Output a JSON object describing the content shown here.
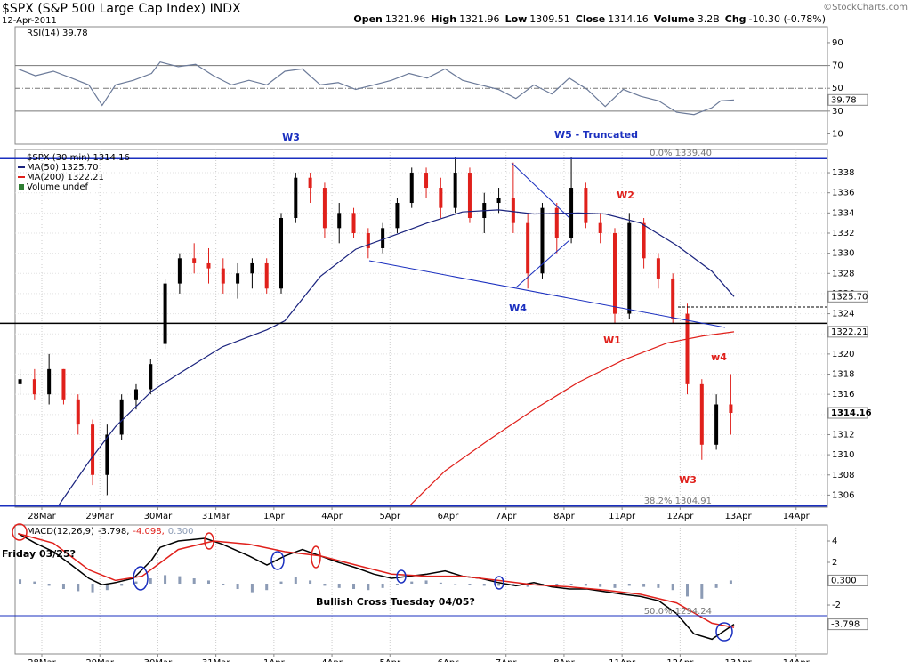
{
  "header": {
    "title": "$SPX (S&P 500 Large Cap Index) INDX",
    "date": "12-Apr-2011",
    "credit": "©StockCharts.com",
    "quote": [
      {
        "label": "Open",
        "value": "1321.96"
      },
      {
        "label": "High",
        "value": "1321.96"
      },
      {
        "label": "Low",
        "value": "1309.51"
      },
      {
        "label": "Close",
        "value": "1314.16"
      },
      {
        "label": "Volume",
        "value": "3.2B"
      },
      {
        "label": "Chg",
        "value": "-10.30 (-0.78%)"
      }
    ]
  },
  "chart_data": [
    {
      "type": "line",
      "title": "RSI(14) 39.78",
      "xlim": [
        -0.46,
        13.54
      ],
      "ylim": [
        1,
        104
      ],
      "yticks": [
        10,
        30,
        50,
        70,
        90
      ],
      "bands": [
        30,
        70
      ],
      "midline": 50,
      "series": [
        {
          "color": "#6b7a99",
          "x": [
            -0.41,
            -0.11,
            0.2,
            0.51,
            0.81,
            1.04,
            1.27,
            1.58,
            1.89,
            2.04,
            2.35,
            2.65,
            2.96,
            3.27,
            3.57,
            3.88,
            4.19,
            4.49,
            4.8,
            5.11,
            5.41,
            5.72,
            6.03,
            6.33,
            6.64,
            6.95,
            7.25,
            7.56,
            7.87,
            8.17,
            8.48,
            8.79,
            9.09,
            9.4,
            9.71,
            10.02,
            10.32,
            10.63,
            10.94,
            11.24,
            11.55,
            11.7,
            11.93
          ],
          "values": [
            67,
            61,
            65,
            59,
            53,
            35,
            53,
            57,
            63,
            73,
            69,
            71,
            61,
            53,
            57,
            53,
            65,
            67,
            53,
            55,
            49,
            53,
            57,
            63,
            59,
            67,
            57,
            53,
            49,
            41,
            53,
            45,
            59,
            49,
            34,
            49,
            43,
            39,
            29,
            27,
            33,
            39,
            39.78
          ]
        }
      ],
      "tags": [
        {
          "value": 39.78,
          "label": "39.78"
        }
      ]
    },
    {
      "type": "candlestick",
      "name": "$SPX (30 min) 1314.16",
      "up_color": "#000000",
      "down_color": "#e0201b",
      "grid": true,
      "xlim": [
        -0.46,
        13.54
      ],
      "ylim": [
        1304.8,
        1340.3
      ],
      "yticks": [
        1306,
        1308,
        1310,
        1312,
        1314,
        1316,
        1318,
        1320,
        1322,
        1324,
        1326,
        1328,
        1330,
        1332,
        1334,
        1336,
        1338
      ],
      "xticks": [
        {
          "value": 0,
          "label": "28Mar"
        },
        {
          "value": 1,
          "label": "29Mar"
        },
        {
          "value": 2,
          "label": "30Mar"
        },
        {
          "value": 3,
          "label": "31Mar"
        },
        {
          "value": 4,
          "label": "1Apr"
        },
        {
          "value": 5,
          "label": "4Apr"
        },
        {
          "value": 6,
          "label": "5Apr"
        },
        {
          "value": 7,
          "label": "6Apr"
        },
        {
          "value": 8,
          "label": "7Apr"
        },
        {
          "value": 9,
          "label": "8Apr"
        },
        {
          "value": 10,
          "label": "11Apr"
        },
        {
          "value": 11,
          "label": "12Apr"
        },
        {
          "value": 12,
          "label": "13Apr"
        },
        {
          "value": 13,
          "label": "14Apr"
        }
      ],
      "x": [
        -0.375,
        -0.125,
        0.125,
        0.375,
        0.625,
        0.875,
        1.125,
        1.375,
        1.625,
        1.875,
        2.125,
        2.375,
        2.625,
        2.875,
        3.125,
        3.375,
        3.625,
        3.875,
        4.125,
        4.375,
        4.625,
        4.875,
        5.125,
        5.375,
        5.625,
        5.875,
        6.125,
        6.375,
        6.625,
        6.875,
        7.125,
        7.375,
        7.625,
        7.875,
        8.125,
        8.375,
        8.625,
        8.875,
        9.125,
        9.375,
        9.625,
        9.875,
        10.125,
        10.375,
        10.625,
        10.875,
        11.125,
        11.375,
        11.625,
        11.875
      ],
      "open": [
        1317,
        1317.5,
        1316,
        1318.5,
        1315.5,
        1313,
        1308,
        1312,
        1315.5,
        1316.5,
        1321,
        1327,
        1329.5,
        1329,
        1328.5,
        1327,
        1328,
        1329,
        1326.5,
        1333.5,
        1337.5,
        1336.5,
        1332.5,
        1334,
        1332,
        1330.5,
        1332.5,
        1335,
        1338,
        1336.5,
        1334.5,
        1338,
        1333.5,
        1335,
        1335.5,
        1333,
        1328,
        1334.5,
        1331.5,
        1336.5,
        1333,
        1332,
        1324,
        1333,
        1329.5,
        1327.5,
        1324,
        1317,
        1311,
        1315
      ],
      "high": [
        1318.5,
        1318.5,
        1320,
        1318.5,
        1316,
        1313.5,
        1313,
        1316,
        1317,
        1319.5,
        1327.5,
        1330,
        1331,
        1330.5,
        1329.5,
        1329,
        1329.5,
        1329.5,
        1334,
        1338,
        1338,
        1337,
        1335,
        1334.5,
        1332.5,
        1333,
        1335.5,
        1338.5,
        1338.5,
        1337.5,
        1339.5,
        1338.5,
        1336,
        1336.5,
        1339,
        1334,
        1335,
        1335,
        1339.5,
        1337,
        1334,
        1332.5,
        1334,
        1333.5,
        1330,
        1328,
        1325,
        1317.5,
        1316,
        1318
      ],
      "low": [
        1316,
        1315.5,
        1315,
        1315,
        1312,
        1307,
        1306,
        1311.5,
        1314.5,
        1316,
        1320.5,
        1326,
        1328,
        1327,
        1326,
        1325.5,
        1326.5,
        1326,
        1326,
        1333,
        1335,
        1331.5,
        1331,
        1331.5,
        1329.5,
        1330,
        1332,
        1334.5,
        1335.5,
        1333.5,
        1334,
        1333,
        1332,
        1334,
        1332,
        1326.5,
        1327.5,
        1330,
        1331,
        1332.5,
        1331,
        1323,
        1323.5,
        1328.5,
        1326.5,
        1323,
        1316,
        1309.5,
        1310.5,
        1312
      ],
      "close": [
        1317.5,
        1316,
        1318.5,
        1315.5,
        1313,
        1308,
        1312,
        1315.5,
        1316.5,
        1319,
        1327,
        1329.5,
        1329,
        1328.5,
        1327,
        1328,
        1329,
        1326.5,
        1333.5,
        1337.5,
        1336.5,
        1332.5,
        1334,
        1332,
        1330.5,
        1332.5,
        1335,
        1338,
        1336.5,
        1334.5,
        1338,
        1333.5,
        1335,
        1335.5,
        1333,
        1328,
        1334.5,
        1331.5,
        1336.5,
        1333,
        1332,
        1324,
        1333,
        1329.5,
        1327.5,
        1323.5,
        1317,
        1311,
        1315,
        1314.16
      ],
      "series": [
        {
          "name": "MA(50) 1325.70",
          "color": "#1a237e",
          "x": [
            0.28,
            0.81,
            1.27,
            1.89,
            2.35,
            3.11,
            3.88,
            4.19,
            4.8,
            5.41,
            6.03,
            6.64,
            7.25,
            7.87,
            8.48,
            9.25,
            9.71,
            10.32,
            10.94,
            11.55,
            11.93
          ],
          "values": [
            1304.9,
            1309.3,
            1312.8,
            1316.3,
            1318,
            1320.7,
            1322.4,
            1323.3,
            1327.7,
            1330.4,
            1331.7,
            1333,
            1334.1,
            1334.3,
            1333.9,
            1334,
            1333.9,
            1333,
            1330.8,
            1328.2,
            1325.7
          ]
        },
        {
          "name": "MA(200) 1322.21",
          "color": "#e0201b",
          "x": [
            6.33,
            6.95,
            7.71,
            8.48,
            9.25,
            10.02,
            10.78,
            11.4,
            11.93
          ],
          "values": [
            1304.9,
            1308.4,
            1311.5,
            1314.5,
            1317.2,
            1319.4,
            1321.1,
            1321.8,
            1322.21
          ]
        }
      ],
      "volume_legend": "Volume undef",
      "volume_color": "#2e7d32",
      "hlines": [
        {
          "value": 1339.4,
          "label": "0.0% 1339.40",
          "color": "#1a2fbf"
        },
        {
          "value": 1304.91,
          "label": "38.2% 1304.91",
          "color": "#1a2fbf"
        },
        {
          "value": 1323.05,
          "color": "#000000"
        }
      ],
      "tags": [
        {
          "value": 1325.7,
          "label": "1325.70"
        },
        {
          "value": 1322.21,
          "label": "1322.21"
        },
        {
          "value": 1314.16,
          "label": "1314.16"
        }
      ],
      "annotations": [
        {
          "text": "W3",
          "color": "#1a2fbf"
        },
        {
          "text": "W5 - Truncated",
          "color": "#1a2fbf"
        },
        {
          "text": "W4",
          "color": "#1a2fbf"
        },
        {
          "text": "W1",
          "color": "#e0201b"
        },
        {
          "text": "W2",
          "color": "#e0201b"
        },
        {
          "text": "W3",
          "color": "#e0201b"
        },
        {
          "text": "w4",
          "color": "#e0201b"
        }
      ]
    },
    {
      "type": "macd",
      "title": "MACD(12,26,9)",
      "legend": [
        "-3.798,",
        "-4.098,",
        "0.300"
      ],
      "xlim": [
        -0.46,
        13.54
      ],
      "ylim": [
        -6.58,
        5.5
      ],
      "yticks": [
        -2,
        2,
        4
      ],
      "xticks": [
        {
          "value": 0,
          "label": "28Mar"
        },
        {
          "value": 1,
          "label": "29Mar"
        },
        {
          "value": 2,
          "label": "30Mar"
        },
        {
          "value": 3,
          "label": "31Mar"
        },
        {
          "value": 4,
          "label": "1Apr"
        },
        {
          "value": 5,
          "label": "4Apr"
        },
        {
          "value": 6,
          "label": "5Apr"
        },
        {
          "value": 7,
          "label": "6Apr"
        },
        {
          "value": 8,
          "label": "7Apr"
        },
        {
          "value": 9,
          "label": "8Apr"
        },
        {
          "value": 10,
          "label": "11Apr"
        },
        {
          "value": 11,
          "label": "12Apr"
        },
        {
          "value": 12,
          "label": "13Apr"
        },
        {
          "value": 13,
          "label": "14Apr"
        }
      ],
      "series": [
        {
          "color": "#000000",
          "x": [
            -0.41,
            -0.11,
            0.2,
            0.51,
            0.81,
            1.04,
            1.27,
            1.58,
            1.89,
            2.04,
            2.35,
            2.81,
            3.11,
            3.57,
            3.88,
            4.19,
            4.49,
            4.8,
            5.11,
            5.41,
            5.72,
            6.03,
            6.33,
            6.64,
            6.95,
            7.25,
            7.56,
            7.87,
            8.17,
            8.48,
            8.79,
            9.09,
            9.4,
            9.71,
            10.02,
            10.32,
            10.63,
            10.94,
            11.24,
            11.55,
            11.93
          ],
          "values": [
            4.7,
            3.8,
            3,
            1.75,
            0.5,
            -0.1,
            0.1,
            0.5,
            2.2,
            3.4,
            4,
            4.25,
            3.7,
            2.6,
            1.75,
            2.6,
            3.2,
            2.6,
            2,
            1.5,
            0.9,
            0.5,
            0.7,
            0.9,
            1.2,
            0.7,
            0.5,
            0.1,
            -0.2,
            0.1,
            -0.3,
            -0.5,
            -0.5,
            -0.75,
            -1,
            -1.2,
            -1.6,
            -2.8,
            -4.7,
            -5.2,
            -3.798
          ]
        },
        {
          "color": "#e0201b",
          "x": [
            -0.41,
            0.2,
            0.81,
            1.27,
            1.73,
            2.35,
            2.96,
            3.57,
            4.19,
            4.8,
            5.41,
            6.03,
            6.64,
            7.25,
            7.87,
            8.48,
            9.09,
            9.71,
            10.32,
            10.94,
            11.55,
            11.93
          ],
          "values": [
            4.7,
            3.8,
            1.3,
            0.3,
            0.7,
            3.2,
            4,
            3.7,
            3,
            2.6,
            1.75,
            0.9,
            0.7,
            0.7,
            0.3,
            -0.1,
            -0.3,
            -0.6,
            -1,
            -1.8,
            -3.7,
            -4.098
          ]
        }
      ],
      "histogram": {
        "color": "#8c9bb5",
        "x": [
          -0.375,
          -0.125,
          0.125,
          0.375,
          0.625,
          0.875,
          1.125,
          1.375,
          1.625,
          1.875,
          2.125,
          2.375,
          2.625,
          2.875,
          3.125,
          3.375,
          3.625,
          3.875,
          4.125,
          4.375,
          4.625,
          4.875,
          5.125,
          5.375,
          5.625,
          5.875,
          6.125,
          6.375,
          6.625,
          6.875,
          7.125,
          7.375,
          7.625,
          7.875,
          8.125,
          8.375,
          8.625,
          8.875,
          9.125,
          9.375,
          9.625,
          9.875,
          10.125,
          10.375,
          10.625,
          10.875,
          11.125,
          11.375,
          11.625,
          11.875
        ],
        "values": [
          0.4,
          0.2,
          -0.2,
          -0.5,
          -0.7,
          -0.8,
          -0.6,
          -0.2,
          0.2,
          0.5,
          0.8,
          0.7,
          0.5,
          0.3,
          -0.1,
          -0.5,
          -0.8,
          -0.6,
          0.2,
          0.6,
          0.3,
          -0.2,
          -0.4,
          -0.5,
          -0.6,
          -0.4,
          -0.1,
          0.2,
          0.3,
          0.1,
          0,
          -0.1,
          -0.2,
          -0.2,
          -0.2,
          -0.3,
          -0.1,
          -0.2,
          -0.1,
          -0.2,
          -0.3,
          -0.4,
          -0.2,
          -0.3,
          -0.4,
          -0.6,
          -1.2,
          -1.4,
          -0.4,
          0.3
        ]
      },
      "tags": [
        {
          "value": 0.3,
          "label": "0.300"
        },
        {
          "value": -3.798,
          "label": "-3.798"
        }
      ],
      "annotations": [
        "Friday 03/25?",
        "Bullish Cross Tuesday 04/05?",
        "50.0% 1294.24"
      ]
    }
  ]
}
